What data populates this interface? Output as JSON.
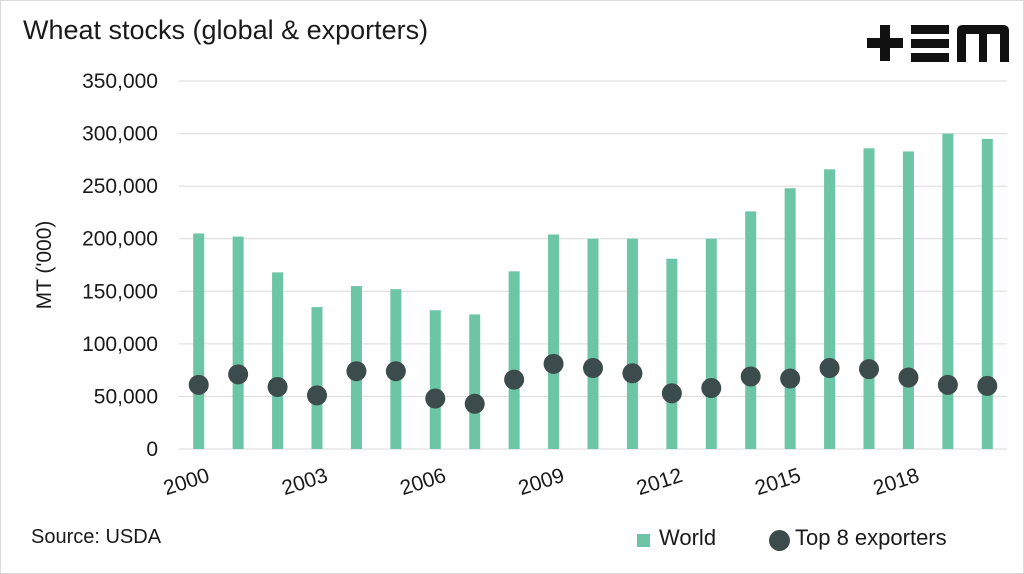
{
  "chart_data": {
    "type": "bar",
    "title": "Wheat stocks (global & exporters)",
    "ylabel": "MT ('000)",
    "xlabel": "",
    "ylim": [
      0,
      350000
    ],
    "y_ticks": [
      0,
      50000,
      100000,
      150000,
      200000,
      250000,
      300000,
      350000
    ],
    "y_tick_labels": [
      "0",
      "50,000",
      "100,000",
      "150,000",
      "200,000",
      "250,000",
      "300,000",
      "350,000"
    ],
    "categories": [
      "2000",
      "2001",
      "2002",
      "2003",
      "2004",
      "2005",
      "2006",
      "2007",
      "2008",
      "2009",
      "2010",
      "2011",
      "2012",
      "2013",
      "2014",
      "2015",
      "2016",
      "2017",
      "2018",
      "2019",
      "2020"
    ],
    "x_tick_labels": [
      "2000",
      "2003",
      "2006",
      "2009",
      "2012",
      "2015",
      "2018"
    ],
    "grid": true,
    "legend_position": "bottom-right",
    "series": [
      {
        "name": "World",
        "type": "bar",
        "color": "#6cc5a4",
        "values": [
          205000,
          202000,
          168000,
          135000,
          155000,
          152000,
          132000,
          128000,
          169000,
          204000,
          200000,
          200000,
          181000,
          200000,
          226000,
          248000,
          266000,
          286000,
          283000,
          300000,
          295000
        ]
      },
      {
        "name": "Top 8 exporters",
        "type": "scatter",
        "color": "#3c4b4b",
        "values": [
          61000,
          71000,
          59000,
          51000,
          74000,
          74000,
          48000,
          43000,
          66000,
          81000,
          77000,
          72000,
          53000,
          58000,
          69000,
          67000,
          77000,
          76000,
          68000,
          61000,
          60000
        ]
      }
    ]
  },
  "source": "Source: USDA",
  "logo": {
    "text": "+EM",
    "icon": "tem-logo"
  }
}
